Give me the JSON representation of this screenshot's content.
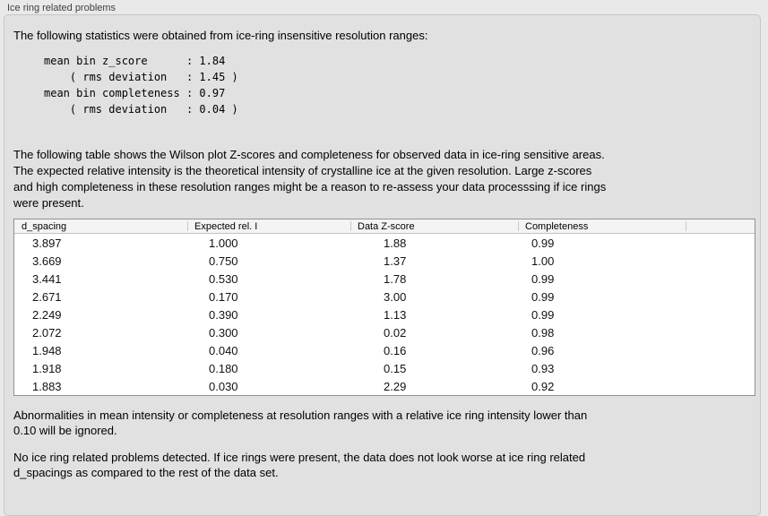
{
  "group": {
    "title": "Ice ring related problems"
  },
  "stats": {
    "intro": "The following statistics were obtained from ice-ring insensitive resolution ranges:",
    "block": "mean bin z_score      : 1.84\n    ( rms deviation   : 1.45 )\nmean bin completeness : 0.97\n    ( rms deviation   : 0.04 )",
    "mean_bin_z_score": "1.84",
    "z_score_rms_deviation": "1.45",
    "mean_bin_completeness": "0.97",
    "completeness_rms_deviation": "0.04"
  },
  "table": {
    "description": "The following table shows the Wilson plot Z-scores and completeness for observed data in ice-ring sensitive areas.\nThe expected relative intensity is the theoretical intensity of crystalline ice at the given resolution. Large z-scores\nand high completeness in these resolution ranges might be a reason to re-assess your data processsing if ice rings\nwere present.",
    "columns": [
      "d_spacing",
      "Expected rel. I",
      "Data Z-score",
      "Completeness"
    ],
    "rows": [
      [
        "3.897",
        "1.000",
        "1.88",
        "0.99"
      ],
      [
        "3.669",
        "0.750",
        "1.37",
        "1.00"
      ],
      [
        "3.441",
        "0.530",
        "1.78",
        "0.99"
      ],
      [
        "2.671",
        "0.170",
        "3.00",
        "0.99"
      ],
      [
        "2.249",
        "0.390",
        "1.13",
        "0.99"
      ],
      [
        "2.072",
        "0.300",
        "0.02",
        "0.98"
      ],
      [
        "1.948",
        "0.040",
        "0.16",
        "0.96"
      ],
      [
        "1.918",
        "0.180",
        "0.15",
        "0.93"
      ],
      [
        "1.883",
        "0.030",
        "2.29",
        "0.92"
      ]
    ]
  },
  "notes": {
    "ignore": "Abnormalities in mean intensity or completeness at resolution ranges with a relative ice ring intensity lower than\n0.10 will be ignored.",
    "conclusion": "No ice ring related problems detected. If ice rings were present, the data does not look worse at ice ring related\nd_spacings as compared to the rest of the data set."
  },
  "colors": {
    "page_bg": "#e9e9e9",
    "panel_bg": "#e1e1e1",
    "panel_border": "#c6c6c6",
    "table_bg": "#ffffff",
    "table_border": "#919191",
    "table_header_bg": "#f4f4f4"
  }
}
